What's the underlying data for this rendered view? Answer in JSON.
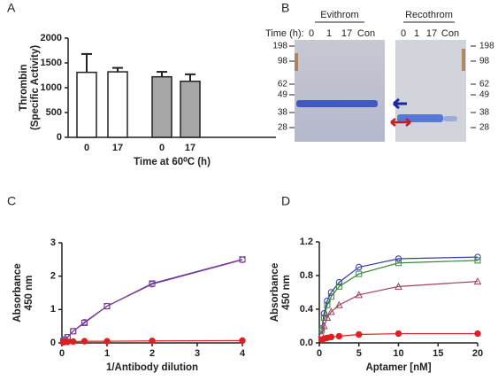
{
  "chart_data": [
    {
      "type": "bar",
      "panel": "A",
      "ylabel": [
        "Thrombin",
        "(Specific Activity)"
      ],
      "xlabel": "Time at 60⁰C (h)",
      "categories": [
        "0",
        "17",
        "0",
        "17"
      ],
      "values": [
        1310,
        1320,
        1220,
        1130
      ],
      "errors": [
        370,
        80,
        100,
        140
      ],
      "colors": [
        "#ffffff",
        "#ffffff",
        "#a6a6a6",
        "#a6a6a6"
      ],
      "ylim": [
        0,
        2000
      ],
      "yticks": [
        0,
        500,
        1000,
        1500,
        2000
      ]
    },
    {
      "type": "line",
      "panel": "C",
      "ylabel": [
        "Absorbance",
        "450 nm"
      ],
      "xlabel": "1/Antibody dilution",
      "x": [
        0.03,
        0.06,
        0.125,
        0.25,
        0.5,
        1,
        2,
        4
      ],
      "series": [
        {
          "color": "#3a3ab0",
          "marker": "square",
          "filled": false,
          "values": [
            0.05,
            0.1,
            0.17,
            0.35,
            0.6,
            1.1,
            1.78,
            2.5
          ]
        },
        {
          "color": "#8a3a8a",
          "marker": "circle",
          "filled": false,
          "values": [
            0.05,
            0.1,
            0.17,
            0.35,
            0.62,
            1.1,
            1.76,
            2.49
          ]
        },
        {
          "color": "#e02020",
          "marker": "circle",
          "filled": true,
          "values": [
            0.02,
            0.03,
            0.03,
            0.04,
            0.05,
            0.05,
            0.06,
            0.07
          ]
        }
      ],
      "xlim": [
        0,
        4
      ],
      "xticks": [
        0,
        1,
        2,
        3,
        4
      ],
      "ylim": [
        0,
        3
      ],
      "yticks": [
        0,
        1,
        2,
        3
      ]
    },
    {
      "type": "scatter",
      "panel": "D",
      "ylabel": [
        "Absorbance",
        "450 nm"
      ],
      "xlabel": "Aptamer [nM]",
      "fit_line": true,
      "x": [
        0.3,
        0.6,
        1,
        1.5,
        2.5,
        5,
        10,
        20
      ],
      "series": [
        {
          "color": "#3a3ab0",
          "marker": "circle",
          "filled": false,
          "values": [
            0.17,
            0.35,
            0.5,
            0.6,
            0.72,
            0.9,
            1.0,
            1.02
          ]
        },
        {
          "color": "#3a8a3a",
          "marker": "square",
          "filled": false,
          "values": [
            0.15,
            0.3,
            0.45,
            0.55,
            0.67,
            0.82,
            0.95,
            0.98
          ]
        },
        {
          "color": "#a04060",
          "marker": "triangle",
          "filled": false,
          "values": [
            0.1,
            0.2,
            0.3,
            0.37,
            0.45,
            0.57,
            0.67,
            0.73
          ]
        },
        {
          "color": "#e02020",
          "marker": "circle",
          "filled": true,
          "values": [
            0.04,
            0.05,
            0.06,
            0.07,
            0.08,
            0.1,
            0.11,
            0.11
          ]
        }
      ],
      "xlim": [
        0,
        20
      ],
      "xticks": [
        0,
        5,
        10,
        15,
        20
      ],
      "ylim": [
        0,
        1.2
      ],
      "yticks": [
        {
          "value": 0,
          "label": "0.0"
        },
        0.4,
        0.8,
        1.2
      ]
    }
  ],
  "gel": {
    "panel": "B",
    "time_label": "Time (h):",
    "groups": [
      "Evithrom",
      "Recothrom"
    ],
    "lanes": [
      [
        "0",
        "1",
        "17",
        "Con"
      ],
      [
        "0",
        "1",
        "17",
        "Con"
      ]
    ],
    "markers": [
      "198",
      "98",
      "62",
      "49",
      "38",
      "28"
    ]
  }
}
